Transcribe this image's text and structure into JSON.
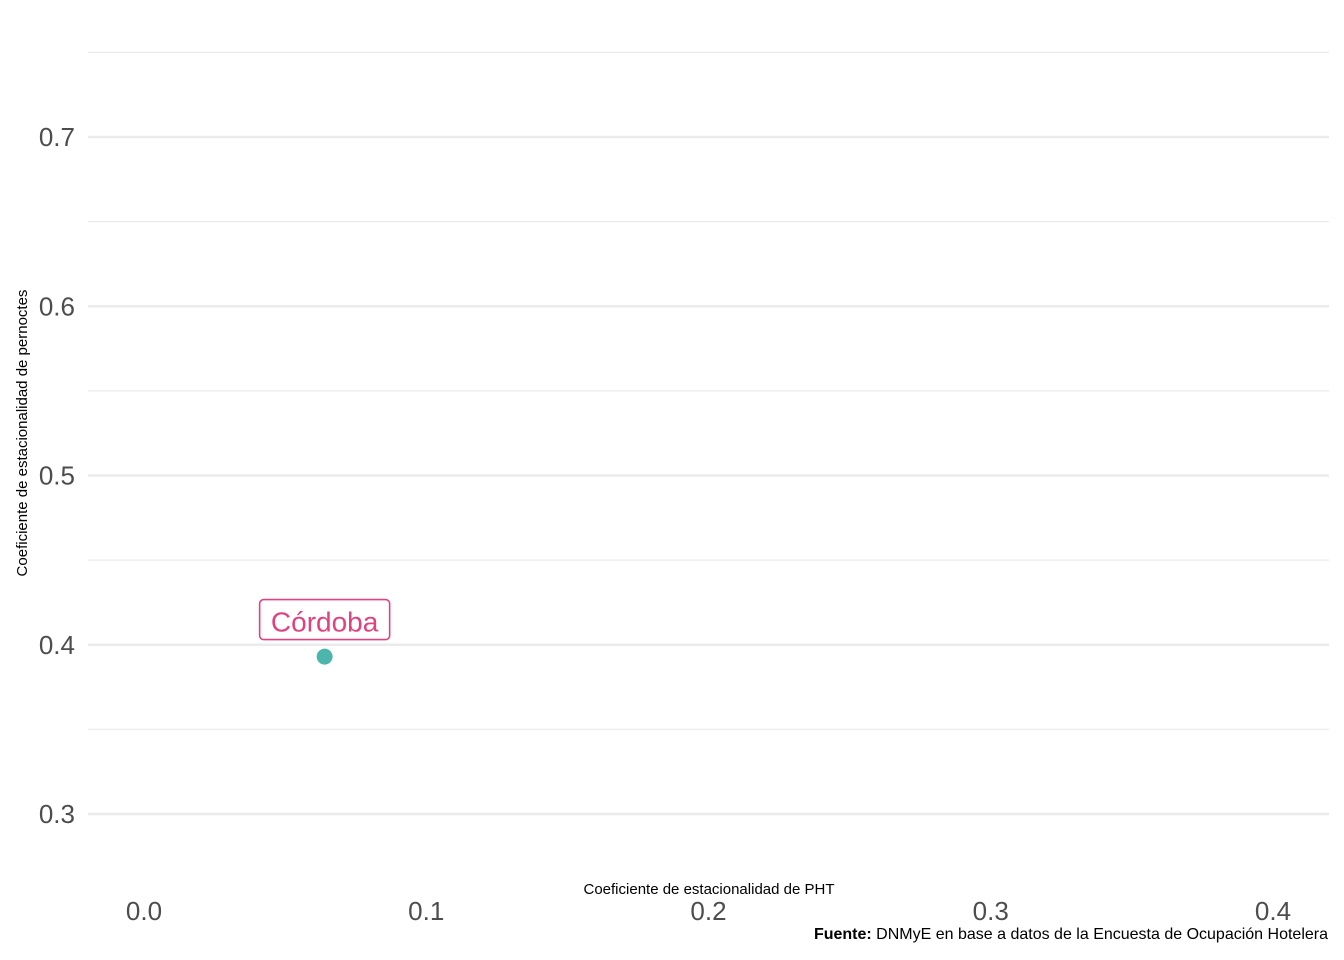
{
  "chart_data": {
    "type": "scatter",
    "xlabel": "Coeficiente de estacionalidad de PHT",
    "ylabel": "Coeficiente de estacionalidad de pernoctes",
    "xlim": [
      -0.02,
      0.42
    ],
    "ylim": [
      0.26,
      0.75
    ],
    "x_ticks": [
      0.0,
      0.1,
      0.2,
      0.3,
      0.4
    ],
    "x_tick_labels": [
      "0.0",
      "0.1",
      "0.2",
      "0.3",
      "0.4"
    ],
    "y_ticks": [
      0.3,
      0.4,
      0.5,
      0.6,
      0.7
    ],
    "y_tick_labels": [
      "0.3",
      "0.4",
      "0.5",
      "0.6",
      "0.7"
    ],
    "y_minor_ticks": [
      0.35,
      0.45,
      0.55,
      0.65,
      0.75
    ],
    "grid": true,
    "points": [
      {
        "label": "Córdoba",
        "x": 0.064,
        "y": 0.393
      }
    ],
    "colors": {
      "point": "#4db6ac",
      "label": "#e0427f",
      "grid": "#ebebeb",
      "tick_text": "#4d4d4d"
    }
  },
  "caption": {
    "bold": "Fuente:",
    "text": " DNMyE en base a datos de la Encuesta de Ocupación Hotelera"
  }
}
